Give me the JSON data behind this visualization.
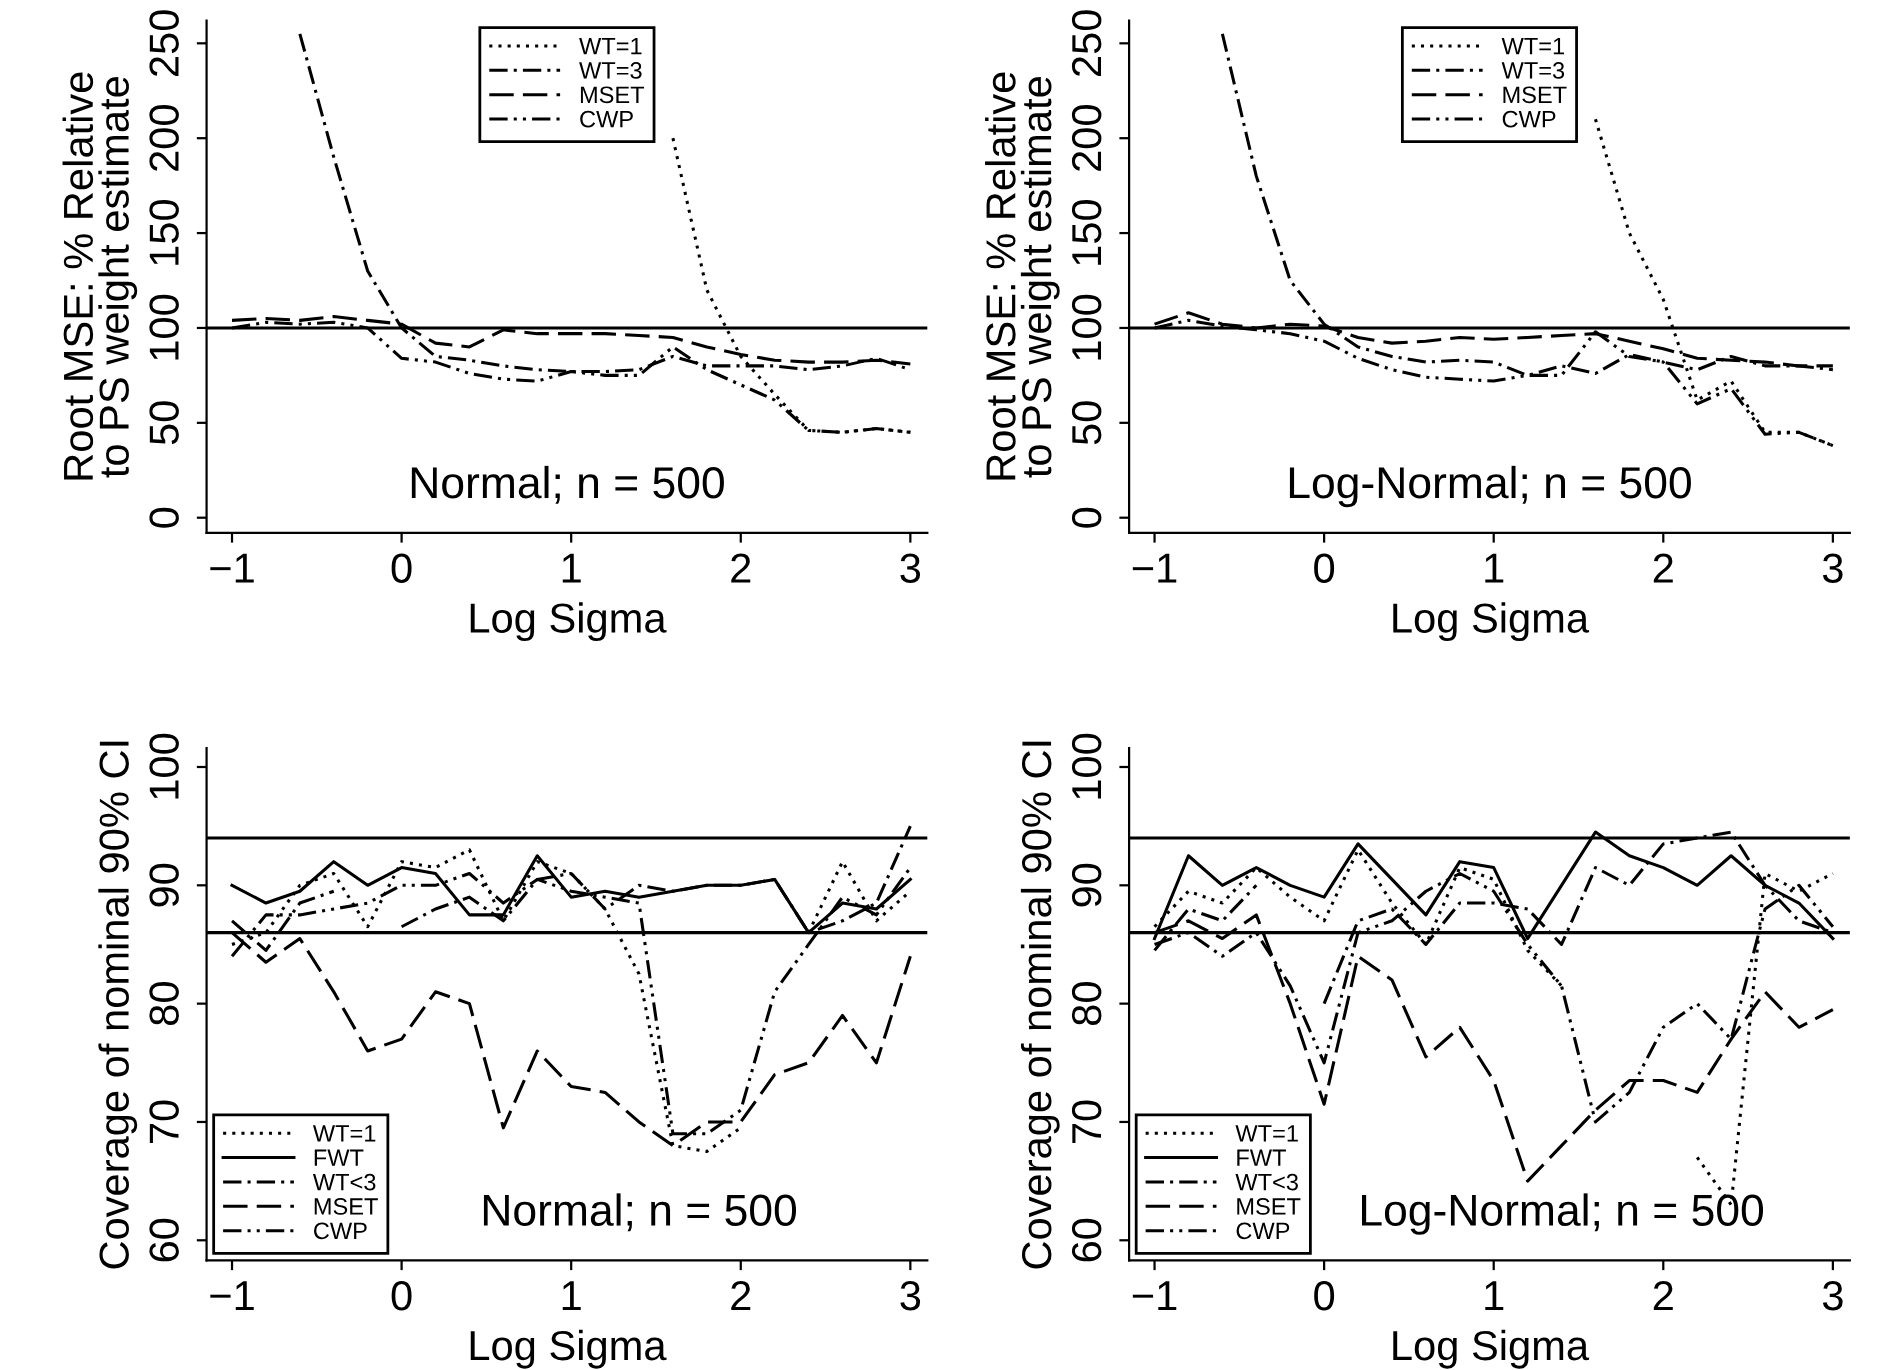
{
  "chart_data": [
    {
      "type": "line",
      "xlabel": "Log Sigma",
      "ylabel": "Root MSE: % Relative\nto PS weight estimate",
      "annotations": [
        "Normal; n = 500"
      ],
      "x": [
        -1,
        -0.8,
        -0.6,
        -0.4,
        -0.2,
        0,
        0.2,
        0.4,
        0.6,
        0.8,
        1,
        1.2,
        1.4,
        1.6,
        1.8,
        2,
        2.2,
        2.4,
        2.6,
        2.8,
        3
      ],
      "xlim": [
        -1.15,
        3.1
      ],
      "xticks": [
        -1,
        0,
        1,
        2,
        3
      ],
      "ylim": [
        -8,
        262
      ],
      "yticks": [
        0,
        50,
        100,
        150,
        200,
        250
      ],
      "legend": "top",
      "grid": false,
      "ref_lines": [
        {
          "axis": "y",
          "value": 100,
          "color": "#000000",
          "line_style": "solid"
        }
      ],
      "series": [
        {
          "name": "WT=1",
          "color": "#000000",
          "line_style": "dotted",
          "values": [
            null,
            null,
            null,
            null,
            null,
            null,
            null,
            null,
            null,
            null,
            null,
            null,
            null,
            200,
            120,
            85,
            65,
            46,
            45,
            47,
            45
          ]
        },
        {
          "name": "WT=3",
          "color": "#000000",
          "line_style": "dashdot",
          "values": [
            null,
            null,
            255,
            190,
            130,
            100,
            85,
            83,
            80,
            78,
            77,
            77,
            78,
            85,
            80,
            80,
            80,
            78,
            80,
            84,
            78
          ]
        },
        {
          "name": "MSET",
          "color": "#000000",
          "line_style": "dashed",
          "values": [
            104,
            105,
            104,
            106,
            104,
            102,
            92,
            90,
            99,
            97,
            97,
            97,
            96,
            95,
            90,
            86,
            83,
            82,
            82,
            83,
            81
          ]
        },
        {
          "name": "CWP",
          "color": "#000000",
          "line_style": "dashdotdot",
          "values": [
            100,
            103,
            102,
            103,
            100,
            84,
            82,
            76,
            73,
            72,
            77,
            75,
            75,
            90,
            78,
            70,
            62,
            46,
            45,
            47,
            45
          ]
        }
      ]
    },
    {
      "type": "line",
      "xlabel": "Log Sigma",
      "ylabel": "Root MSE: % Relative\nto PS weight estimate",
      "annotations": [
        "Log-Normal; n = 500"
      ],
      "x": [
        -1,
        -0.8,
        -0.6,
        -0.4,
        -0.2,
        0,
        0.2,
        0.4,
        0.6,
        0.8,
        1,
        1.2,
        1.4,
        1.6,
        1.8,
        2,
        2.2,
        2.4,
        2.6,
        2.8,
        3
      ],
      "xlim": [
        -1.15,
        3.1
      ],
      "xticks": [
        -1,
        0,
        1,
        2,
        3
      ],
      "ylim": [
        -8,
        262
      ],
      "yticks": [
        0,
        50,
        100,
        150,
        200,
        250
      ],
      "legend": "top",
      "grid": false,
      "ref_lines": [
        {
          "axis": "y",
          "value": 100,
          "color": "#000000",
          "line_style": "solid"
        }
      ],
      "series": [
        {
          "name": "WT=1",
          "color": "#000000",
          "line_style": "dotted",
          "values": [
            null,
            null,
            null,
            null,
            null,
            null,
            null,
            null,
            null,
            null,
            null,
            null,
            null,
            210,
            150,
            115,
            62,
            72,
            45,
            45,
            38
          ]
        },
        {
          "name": "WT=3",
          "color": "#000000",
          "line_style": "dashdot",
          "values": [
            null,
            null,
            255,
            180,
            125,
            102,
            90,
            85,
            82,
            83,
            82,
            75,
            80,
            76,
            86,
            82,
            78,
            85,
            80,
            80,
            78
          ]
        },
        {
          "name": "MSET",
          "color": "#000000",
          "line_style": "dashed",
          "values": [
            102,
            108,
            102,
            100,
            102,
            101,
            95,
            92,
            93,
            95,
            94,
            95,
            96,
            97,
            93,
            89,
            84,
            83,
            82,
            80,
            80
          ]
        },
        {
          "name": "CWP",
          "color": "#000000",
          "line_style": "dashdotdot",
          "values": [
            100,
            104,
            101,
            99,
            97,
            93,
            84,
            78,
            74,
            73,
            72,
            75,
            75,
            98,
            85,
            82,
            60,
            68,
            44,
            45,
            38
          ]
        }
      ]
    },
    {
      "type": "line",
      "xlabel": "Log Sigma",
      "ylabel": "Coverage of nominal 90% CI",
      "annotations": [
        "Normal; n = 500"
      ],
      "x": [
        -1,
        -0.8,
        -0.6,
        -0.4,
        -0.2,
        0,
        0.2,
        0.4,
        0.6,
        0.8,
        1,
        1.2,
        1.4,
        1.6,
        1.8,
        2,
        2.2,
        2.4,
        2.6,
        2.8,
        3
      ],
      "xlim": [
        -1.15,
        3.1
      ],
      "xticks": [
        -1,
        0,
        1,
        2,
        3
      ],
      "ylim": [
        58.3,
        101.6
      ],
      "yticks": [
        60,
        70,
        80,
        90,
        100
      ],
      "legend": "bottom left",
      "grid": false,
      "ref_lines": [
        {
          "axis": "y",
          "value": 94,
          "color": "#000000",
          "line_style": "solid"
        },
        {
          "axis": "y",
          "value": 86,
          "color": "#000000",
          "line_style": "solid"
        }
      ],
      "series": [
        {
          "name": "WT=1",
          "color": "#000000",
          "line_style": "dotted",
          "values": [
            85,
            86,
            90,
            91,
            86.5,
            92,
            91.5,
            93,
            87,
            92,
            91,
            88,
            82.5,
            68,
            67.5,
            69.5,
            null,
            86,
            92,
            87,
            89.5
          ]
        },
        {
          "name": "FWT",
          "color": "#000000",
          "line_style": "solid",
          "values": [
            90,
            88.5,
            89.5,
            92,
            90,
            91.5,
            91,
            87.5,
            87.5,
            92.5,
            89,
            89.5,
            89,
            89.5,
            90,
            90,
            90.5,
            86,
            88.5,
            88,
            90.5
          ]
        },
        {
          "name": "WT<3",
          "color": "#000000",
          "line_style": "dashdot",
          "values": [
            87,
            84.5,
            88.5,
            89.5,
            null,
            86.5,
            88,
            89,
            87,
            90.5,
            91,
            88,
            90,
            89.5,
            90,
            90,
            90.5,
            86,
            87,
            88.5,
            95
          ]
        },
        {
          "name": "MSET",
          "color": "#000000",
          "line_style": "dashed",
          "values": [
            86,
            83.5,
            85.5,
            81,
            76,
            77,
            81,
            80,
            69.5,
            76,
            73,
            72.5,
            70,
            68,
            70,
            70,
            74,
            75,
            79,
            75,
            84
          ]
        },
        {
          "name": "CWP",
          "color": "#000000",
          "line_style": "dashdotdot",
          "values": [
            84,
            87.5,
            87.5,
            88,
            88.5,
            90,
            90,
            91,
            88.5,
            90.5,
            89.5,
            89,
            88.5,
            69,
            69,
            71,
            81,
            85,
            89,
            87.5,
            91.5
          ]
        }
      ]
    },
    {
      "type": "line",
      "xlabel": "Log Sigma",
      "ylabel": "Coverage of nominal 90% CI",
      "annotations": [
        "Log-Normal; n = 500"
      ],
      "x": [
        -1,
        -0.8,
        -0.6,
        -0.4,
        -0.2,
        0,
        0.2,
        0.4,
        0.6,
        0.8,
        1,
        1.2,
        1.4,
        1.6,
        1.8,
        2,
        2.2,
        2.4,
        2.6,
        2.8,
        3
      ],
      "xlim": [
        -1.15,
        3.1
      ],
      "xticks": [
        -1,
        0,
        1,
        2,
        3
      ],
      "ylim": [
        58.3,
        101.6
      ],
      "yticks": [
        60,
        70,
        80,
        90,
        100
      ],
      "legend": "bottom left",
      "grid": false,
      "ref_lines": [
        {
          "axis": "y",
          "value": 94,
          "color": "#000000",
          "line_style": "solid"
        },
        {
          "axis": "y",
          "value": 86,
          "color": "#000000",
          "line_style": "solid"
        }
      ],
      "series": [
        {
          "name": "WT=1",
          "color": "#000000",
          "line_style": "dotted",
          "values": [
            86.5,
            89.5,
            88.5,
            91.5,
            89,
            87,
            93,
            88.5,
            85,
            91.5,
            90.5,
            84.5,
            81.5,
            null,
            null,
            null,
            67,
            63,
            91,
            89.5,
            91
          ]
        },
        {
          "name": "FWT",
          "color": "#000000",
          "line_style": "solid",
          "values": [
            85.5,
            92.5,
            90,
            91.5,
            90,
            89,
            93.5,
            90.5,
            87.5,
            92,
            91.5,
            85.5,
            90,
            94.5,
            92.5,
            91.5,
            90,
            92.5,
            90,
            88.5,
            85.5
          ]
        },
        {
          "name": "WT<3",
          "color": "#000000",
          "line_style": "dashdot",
          "values": [
            84.5,
            88,
            87,
            90,
            null,
            80,
            87,
            88,
            85,
            88.5,
            88.5,
            88,
            85,
            91.5,
            90,
            93.5,
            94,
            94.5,
            90,
            87,
            86
          ]
        },
        {
          "name": "MSET",
          "color": "#000000",
          "line_style": "dashed",
          "values": [
            86,
            87,
            85.5,
            87.5,
            80,
            71.5,
            84,
            82,
            75.5,
            78,
            73.5,
            65,
            68,
            71,
            73.5,
            73.5,
            72.5,
            77,
            81,
            78,
            79.5
          ]
        },
        {
          "name": "CWP",
          "color": "#000000",
          "line_style": "dashdotdot",
          "values": [
            85,
            86,
            84,
            86,
            81.5,
            75,
            86,
            87,
            89.5,
            91,
            89.5,
            85,
            81.5,
            70,
            72.5,
            78,
            80,
            77,
            88,
            90,
            86.5
          ]
        }
      ]
    }
  ]
}
